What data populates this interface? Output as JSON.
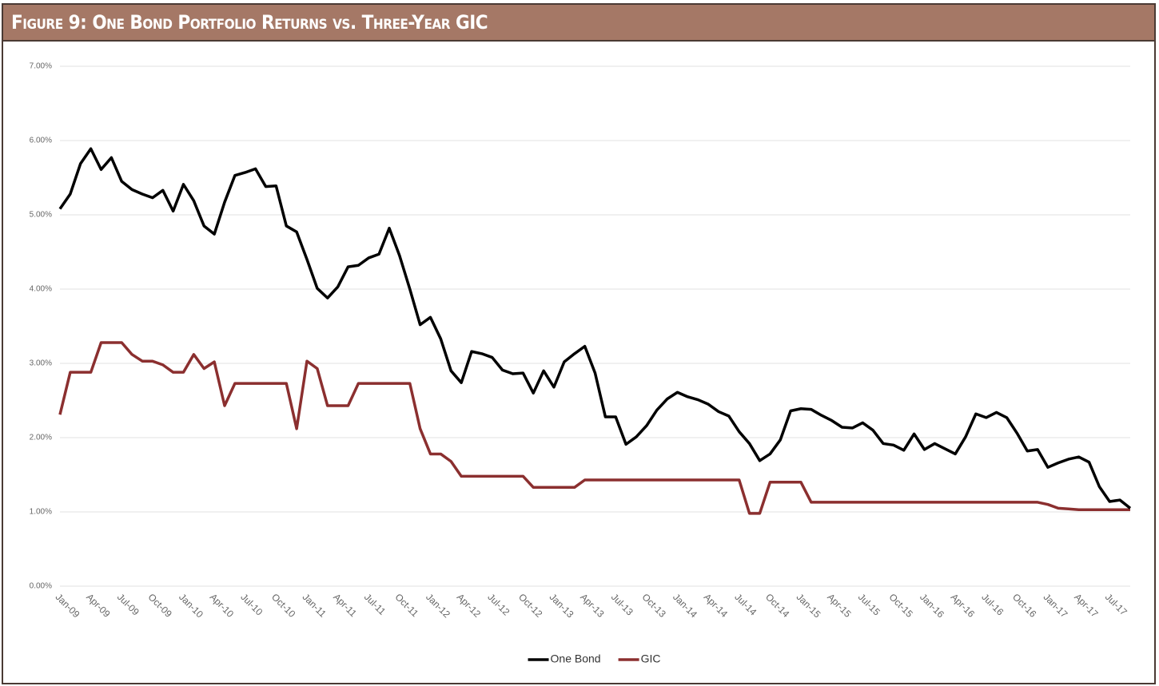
{
  "chart_data": {
    "type": "line",
    "title": "Figure 9: One Bond Portfolio Returns vs. Three-Year GIC",
    "categories": [
      "Jan-09",
      null,
      null,
      "Apr-09",
      null,
      null,
      "Jul-09",
      null,
      null,
      "Oct-09",
      null,
      null,
      "Jan-10",
      null,
      null,
      "Apr-10",
      null,
      null,
      "Jul-10",
      null,
      null,
      "Oct-10",
      null,
      null,
      "Jan-11",
      null,
      null,
      "Apr-11",
      null,
      null,
      "Jul-11",
      null,
      null,
      "Oct-11",
      null,
      null,
      "Jan-12",
      null,
      null,
      "Apr-12",
      null,
      null,
      "Jul-12",
      null,
      null,
      "Oct-12",
      null,
      null,
      "Jan-13",
      null,
      null,
      "Apr-13",
      null,
      null,
      "Jul-13",
      null,
      null,
      "Oct-13",
      null,
      null,
      "Jan-14",
      null,
      null,
      "Apr-14",
      null,
      null,
      "Jul-14",
      null,
      null,
      "Oct-14",
      null,
      null,
      "Jan-15",
      null,
      null,
      "Apr-15",
      null,
      null,
      "Jul-15",
      null,
      null,
      "Oct-15",
      null,
      null,
      "Jan-16",
      null,
      null,
      "Apr-16",
      null,
      null,
      "Jul-16",
      null,
      null,
      "Oct-16",
      null,
      null,
      "Jan-17",
      null,
      null,
      "Apr-17",
      null,
      null,
      "Jul-17",
      null,
      null
    ],
    "series": [
      {
        "name": "One Bond",
        "color": "#000000",
        "values": [
          5.08,
          5.28,
          5.69,
          5.89,
          5.61,
          5.77,
          5.45,
          5.34,
          5.28,
          5.23,
          5.33,
          5.05,
          5.41,
          5.19,
          4.85,
          4.74,
          5.17,
          5.53,
          5.57,
          5.62,
          5.38,
          5.39,
          4.85,
          4.77,
          4.4,
          4.01,
          3.88,
          4.03,
          4.3,
          4.32,
          4.42,
          4.47,
          4.82,
          4.45,
          4.0,
          3.52,
          3.62,
          3.33,
          2.9,
          2.74,
          3.16,
          3.13,
          3.08,
          2.91,
          2.86,
          2.87,
          2.6,
          2.9,
          2.68,
          3.02,
          3.13,
          3.23,
          2.87,
          2.28,
          2.28,
          1.91,
          2.01,
          2.16,
          2.37,
          2.52,
          2.61,
          2.55,
          2.51,
          2.45,
          2.35,
          2.29,
          2.08,
          1.92,
          1.69,
          1.78,
          1.97,
          2.36,
          2.39,
          2.38,
          2.3,
          2.23,
          2.14,
          2.13,
          2.2,
          2.1,
          1.92,
          1.9,
          1.83,
          2.05,
          1.84,
          1.92,
          1.85,
          1.78,
          2.01,
          2.32,
          2.27,
          2.34,
          2.27,
          2.06,
          1.82,
          1.84,
          1.6,
          1.66,
          1.71,
          1.74,
          1.67,
          1.34,
          1.14,
          1.16,
          1.05
        ]
      },
      {
        "name": "GIC",
        "color": "#8b2f2f",
        "values": [
          2.31,
          2.88,
          2.88,
          2.88,
          3.28,
          3.28,
          3.28,
          3.12,
          3.03,
          3.03,
          2.98,
          2.88,
          2.88,
          3.12,
          2.93,
          3.02,
          2.43,
          2.73,
          2.73,
          2.73,
          2.73,
          2.73,
          2.73,
          2.12,
          3.03,
          2.93,
          2.43,
          2.43,
          2.43,
          2.73,
          2.73,
          2.73,
          2.73,
          2.73,
          2.73,
          2.12,
          1.78,
          1.78,
          1.68,
          1.48,
          1.48,
          1.48,
          1.48,
          1.48,
          1.48,
          1.48,
          1.33,
          1.33,
          1.33,
          1.33,
          1.33,
          1.43,
          1.43,
          1.43,
          1.43,
          1.43,
          1.43,
          1.43,
          1.43,
          1.43,
          1.43,
          1.43,
          1.43,
          1.43,
          1.43,
          1.43,
          1.43,
          0.98,
          0.98,
          1.4,
          1.4,
          1.4,
          1.4,
          1.13,
          1.13,
          1.13,
          1.13,
          1.13,
          1.13,
          1.13,
          1.13,
          1.13,
          1.13,
          1.13,
          1.13,
          1.13,
          1.13,
          1.13,
          1.13,
          1.13,
          1.13,
          1.13,
          1.13,
          1.13,
          1.13,
          1.13,
          1.1,
          1.05,
          1.04,
          1.03,
          1.03,
          1.03,
          1.03,
          1.03,
          1.03
        ]
      }
    ],
    "ylim": [
      0,
      7
    ],
    "yticks": [
      {
        "value": 0,
        "label": "0.00%"
      },
      {
        "value": 1,
        "label": "1.00%"
      },
      {
        "value": 2,
        "label": "2.00%"
      },
      {
        "value": 3,
        "label": "3.00%"
      },
      {
        "value": 4,
        "label": "4.00%"
      },
      {
        "value": 5,
        "label": "5.00%"
      },
      {
        "value": 6,
        "label": "6.00%"
      },
      {
        "value": 7,
        "label": "7.00%"
      }
    ],
    "grid": true,
    "legend": "bottom"
  }
}
